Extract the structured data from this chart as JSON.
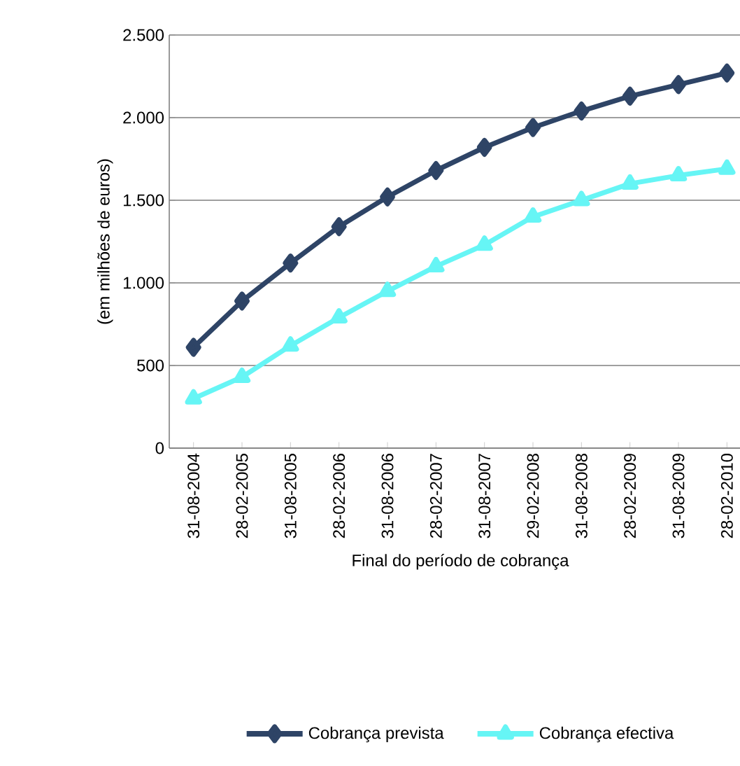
{
  "chart_data": {
    "type": "line",
    "xlabel": "Final do período de cobrança",
    "ylabel": "(em milhões de euros)",
    "categories": [
      "31-08-2004",
      "28-02-2005",
      "31-08-2005",
      "28-02-2006",
      "31-08-2006",
      "28-02-2007",
      "31-08-2007",
      "29-02-2008",
      "31-08-2008",
      "28-02-2009",
      "31-08-2009",
      "28-02-2010"
    ],
    "series": [
      {
        "name": "Cobrança prevista",
        "color": "#2e4466",
        "marker": "diamond",
        "values": [
          610,
          890,
          1120,
          1340,
          1520,
          1680,
          1820,
          1940,
          2040,
          2130,
          2200,
          2270
        ]
      },
      {
        "name": "Cobrança efectiva",
        "color": "#66f5f5",
        "marker": "triangle",
        "values": [
          300,
          430,
          620,
          790,
          950,
          1100,
          1230,
          1400,
          1500,
          1600,
          1650,
          1690
        ]
      }
    ],
    "ylim": [
      0,
      2500
    ],
    "yticks": [
      0,
      500,
      {
        "value": 1000,
        "label": "1.000"
      },
      {
        "value": 1500,
        "label": "1.500"
      },
      {
        "value": 2000,
        "label": "2.000"
      },
      {
        "value": 2500,
        "label": "2.500"
      }
    ],
    "grid": "y",
    "legend": "bottom"
  }
}
